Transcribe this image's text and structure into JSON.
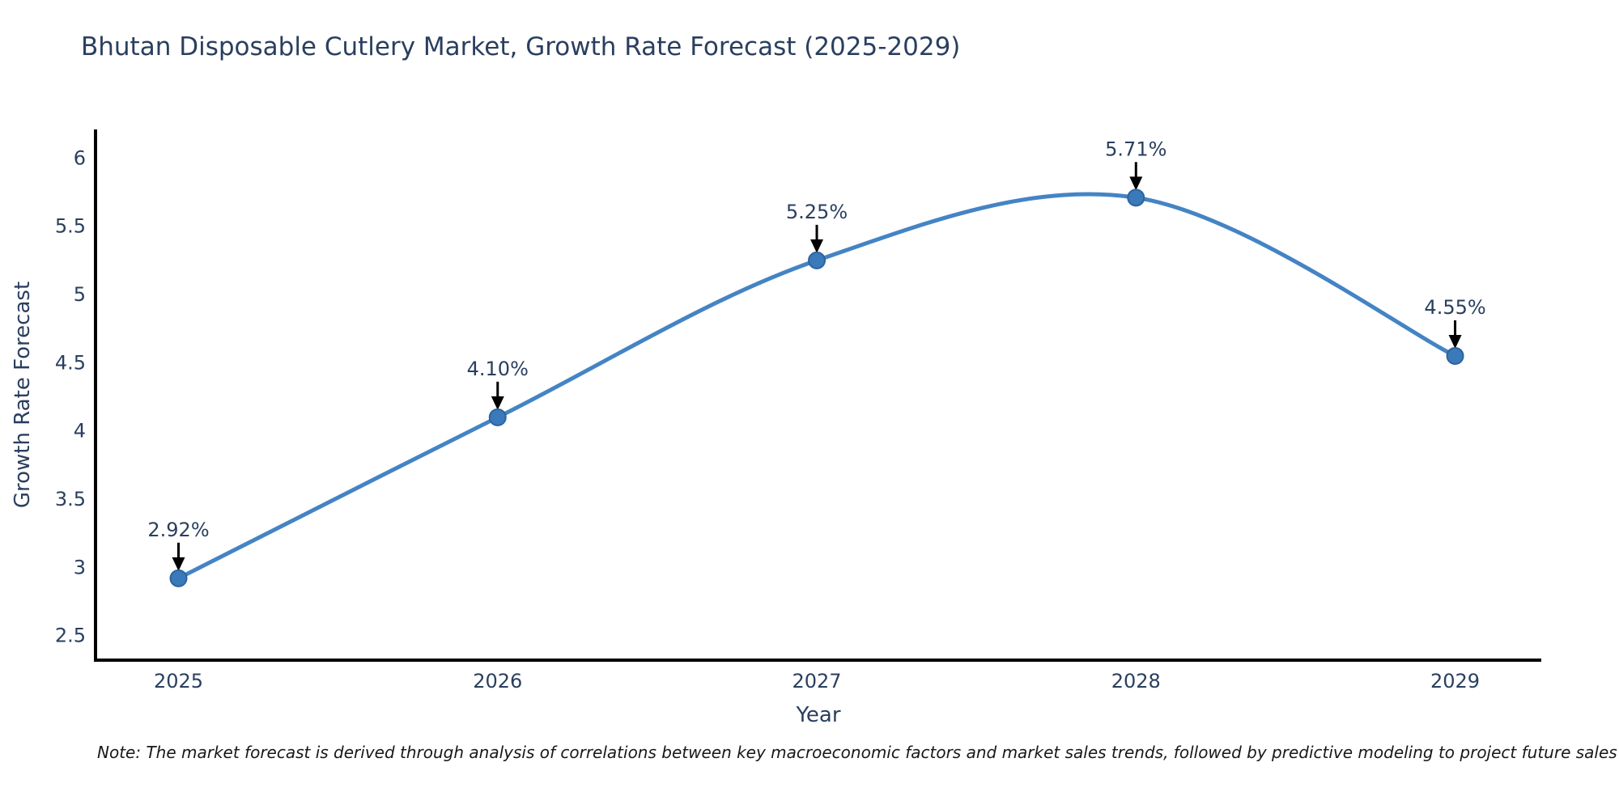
{
  "chart_data": {
    "type": "line",
    "line_shape": "spline",
    "title": "Bhutan Disposable Cutlery Market, Growth Rate Forecast (2025-2029)",
    "xlabel": "Year",
    "ylabel": "Growth Rate Forecast",
    "categories": [
      2025,
      2026,
      2027,
      2028,
      2029
    ],
    "values": [
      2.92,
      4.1,
      5.25,
      5.71,
      4.55
    ],
    "point_labels": [
      "2.92%",
      "4.10%",
      "5.25%",
      "5.71%",
      "4.55%"
    ],
    "xticks": {
      "values": [
        2025,
        2026,
        2027,
        2028,
        2029
      ],
      "labels": [
        "2025",
        "2026",
        "2027",
        "2028",
        "2029"
      ]
    },
    "yticks": {
      "values": [
        2.5,
        3,
        3.5,
        4,
        4.5,
        5,
        5.5,
        6
      ],
      "labels": [
        "2.5",
        "3",
        "3.5",
        "4",
        "4.5",
        "5",
        "5.5",
        "6"
      ]
    },
    "xlim": [
      2024.74,
      2029.27
    ],
    "ylim": [
      2.32,
      6.21
    ],
    "grid": false,
    "legend": null,
    "colors": {
      "line": "#4484c4",
      "marker": "#3a79ba",
      "marker_edge": "#2f639b",
      "arrow": "#000000",
      "axis": "#000000",
      "text": "#2a3f5f"
    }
  },
  "footnote": {
    "text": "Note: The market forecast is derived through analysis of correlations between key macroeconomic factors and market sales trends, followed by predictive modeling to project future sales"
  }
}
